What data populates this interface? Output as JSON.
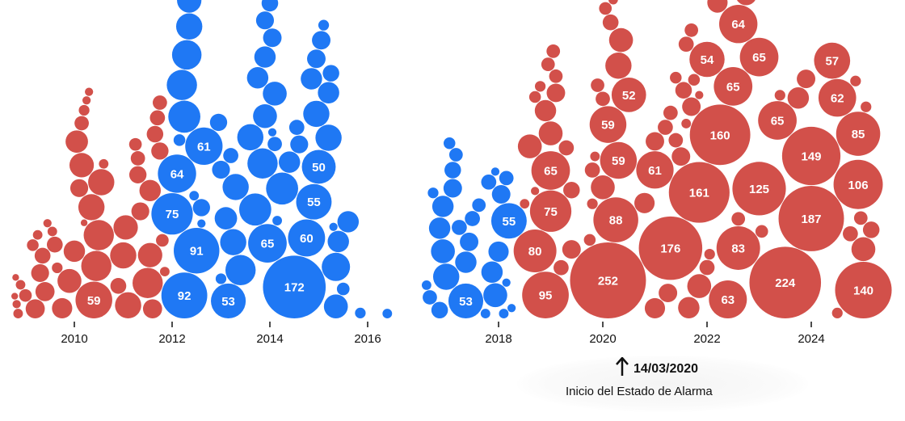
{
  "chart_data": {
    "type": "scatter",
    "subtype": "beeswarm-bubble",
    "title": "",
    "xlabel": "",
    "ylabel": "",
    "x_ticks": [
      "2010",
      "2012",
      "2014",
      "2016",
      "2018",
      "2020",
      "2022",
      "2024"
    ],
    "label_threshold": 50,
    "series": [
      {
        "name": "red-early",
        "color": "#d2504a",
        "points": [
          [
            2008.85,
            4
          ],
          [
            2008.8,
            2
          ],
          [
            2008.78,
            2
          ],
          [
            2008.82,
            3
          ],
          [
            2008.9,
            4
          ],
          [
            2009.0,
            7
          ],
          [
            2009.2,
            16
          ],
          [
            2009.15,
            6
          ],
          [
            2009.3,
            14
          ],
          [
            2009.4,
            16
          ],
          [
            2009.35,
            11
          ],
          [
            2009.25,
            4
          ],
          [
            2009.6,
            11
          ],
          [
            2009.55,
            4
          ],
          [
            2009.45,
            3
          ],
          [
            2009.65,
            5
          ],
          [
            2009.75,
            18
          ],
          [
            2009.9,
            25
          ],
          [
            2010.05,
            22
          ],
          [
            2010.0,
            20
          ],
          [
            2010.15,
            26
          ],
          [
            2010.1,
            14
          ],
          [
            2010.15,
            9
          ],
          [
            2010.2,
            5
          ],
          [
            2010.25,
            3
          ],
          [
            2010.3,
            3
          ],
          [
            2010.2,
            2
          ],
          [
            2010.4,
            59
          ],
          [
            2010.45,
            40
          ],
          [
            2010.5,
            40
          ],
          [
            2010.35,
            30
          ],
          [
            2010.55,
            30
          ],
          [
            2010.6,
            4
          ],
          [
            2010.9,
            11
          ],
          [
            2011.05,
            26
          ],
          [
            2011.1,
            30
          ],
          [
            2011.0,
            30
          ],
          [
            2011.3,
            13
          ],
          [
            2011.35,
            14
          ],
          [
            2011.3,
            9
          ],
          [
            2011.25,
            7
          ],
          [
            2011.5,
            40
          ],
          [
            2011.55,
            26
          ],
          [
            2011.55,
            20
          ],
          [
            2011.6,
            16
          ],
          [
            2011.75,
            13
          ],
          [
            2011.75,
            9
          ],
          [
            2011.8,
            7
          ],
          [
            2011.7,
            10
          ],
          [
            2011.65,
            12
          ],
          [
            2011.85,
            4
          ]
        ]
      },
      {
        "name": "blue-2012-2016",
        "color": "#1f78f4",
        "points": [
          [
            2012.25,
            92
          ],
          [
            2012.5,
            91
          ],
          [
            2012.0,
            75
          ],
          [
            2012.1,
            64
          ],
          [
            2012.65,
            61
          ],
          [
            2013.15,
            53
          ],
          [
            2013.95,
            65
          ],
          [
            2014.5,
            172
          ],
          [
            2012.6,
            3
          ],
          [
            2013.0,
            5
          ],
          [
            2013.25,
            30
          ],
          [
            2012.95,
            13
          ],
          [
            2012.6,
            13
          ],
          [
            2012.45,
            12
          ],
          [
            2012.35,
            26
          ],
          [
            2012.2,
            40
          ],
          [
            2012.25,
            45
          ],
          [
            2012.3,
            38
          ],
          [
            2012.35,
            30
          ],
          [
            2012.4,
            25
          ],
          [
            2012.45,
            4
          ],
          [
            2012.15,
            6
          ],
          [
            2013.0,
            14
          ],
          [
            2013.1,
            22
          ],
          [
            2013.3,
            30
          ],
          [
            2013.2,
            10
          ],
          [
            2013.4,
            40
          ],
          [
            2013.7,
            45
          ],
          [
            2013.85,
            40
          ],
          [
            2013.6,
            30
          ],
          [
            2013.75,
            20
          ],
          [
            2013.9,
            25
          ],
          [
            2014.0,
            12
          ],
          [
            2014.1,
            9
          ],
          [
            2014.05,
            15
          ],
          [
            2014.05,
            3
          ],
          [
            2014.15,
            4
          ],
          [
            2013.9,
            14
          ],
          [
            2013.9,
            20
          ],
          [
            2014.1,
            25
          ],
          [
            2014.25,
            45
          ],
          [
            2014.4,
            20
          ],
          [
            2014.6,
            14
          ],
          [
            2014.55,
            10
          ],
          [
            2014.75,
            60
          ],
          [
            2014.9,
            55
          ],
          [
            2015.0,
            50
          ],
          [
            2015.2,
            20
          ],
          [
            2015.35,
            35
          ],
          [
            2015.35,
            25
          ],
          [
            2015.2,
            30
          ],
          [
            2014.95,
            30
          ],
          [
            2014.85,
            20
          ],
          [
            2014.95,
            15
          ],
          [
            2015.05,
            15
          ],
          [
            2015.1,
            5
          ],
          [
            2015.3,
            3
          ],
          [
            2015.4,
            20
          ],
          [
            2015.5,
            7
          ],
          [
            2015.6,
            20
          ],
          [
            2015.85,
            5
          ],
          [
            2016.3,
            4
          ],
          [
            2014.0,
            8
          ],
          [
            2015.25,
            12
          ]
        ]
      },
      {
        "name": "blue-2017-2018",
        "color": "#1f78f4",
        "points": [
          [
            2017.5,
            53
          ],
          [
            2018.2,
            55
          ],
          [
            2016.9,
            4
          ],
          [
            2017.0,
            5
          ],
          [
            2016.95,
            9
          ],
          [
            2017.1,
            12
          ],
          [
            2017.1,
            20
          ],
          [
            2017.15,
            25
          ],
          [
            2017.2,
            30
          ],
          [
            2017.15,
            20
          ],
          [
            2017.3,
            15
          ],
          [
            2017.3,
            12
          ],
          [
            2017.4,
            10
          ],
          [
            2017.35,
            8
          ],
          [
            2017.25,
            6
          ],
          [
            2017.5,
            20
          ],
          [
            2017.55,
            15
          ],
          [
            2017.6,
            10
          ],
          [
            2017.7,
            8
          ],
          [
            2017.9,
            20
          ],
          [
            2017.95,
            25
          ],
          [
            2018.0,
            18
          ],
          [
            2018.05,
            15
          ],
          [
            2017.85,
            10
          ],
          [
            2018.1,
            4
          ],
          [
            2018.15,
            3
          ],
          [
            2018.25,
            3
          ],
          [
            2017.95,
            3
          ],
          [
            2017.8,
            4
          ],
          [
            2018.15,
            9
          ]
        ]
      },
      {
        "name": "red-2019-2025",
        "color": "#d2504a",
        "points": [
          [
            2018.9,
            95
          ],
          [
            2018.7,
            80
          ],
          [
            2019.0,
            75
          ],
          [
            2019.0,
            65
          ],
          [
            2020.1,
            252
          ],
          [
            2020.25,
            88
          ],
          [
            2020.3,
            59
          ],
          [
            2020.1,
            59
          ],
          [
            2020.5,
            52
          ],
          [
            2021.0,
            61
          ],
          [
            2021.3,
            176
          ],
          [
            2021.85,
            161
          ],
          [
            2022.25,
            160
          ],
          [
            2022.6,
            83
          ],
          [
            2022.4,
            63
          ],
          [
            2022.0,
            54
          ],
          [
            2022.5,
            65
          ],
          [
            2022.6,
            64
          ],
          [
            2023.0,
            65
          ],
          [
            2023.0,
            125
          ],
          [
            2023.35,
            65
          ],
          [
            2023.5,
            224
          ],
          [
            2024.0,
            187
          ],
          [
            2024.0,
            149
          ],
          [
            2024.4,
            57
          ],
          [
            2024.5,
            62
          ],
          [
            2024.9,
            106
          ],
          [
            2024.9,
            85
          ],
          [
            2025.0,
            140
          ],
          [
            2019.4,
            15
          ],
          [
            2018.7,
            3
          ],
          [
            2018.5,
            4
          ],
          [
            2019.1,
            8
          ],
          [
            2018.95,
            8
          ],
          [
            2018.6,
            25
          ],
          [
            2019.0,
            25
          ],
          [
            2019.2,
            10
          ],
          [
            2018.8,
            5
          ],
          [
            2018.9,
            20
          ],
          [
            2019.4,
            12
          ],
          [
            2018.7,
            6
          ],
          [
            2019.1,
            15
          ],
          [
            2019.05,
            8
          ],
          [
            2019.3,
            10
          ],
          [
            2020.0,
            25
          ],
          [
            2020.35,
            25
          ],
          [
            2019.8,
            10
          ],
          [
            2019.9,
            8
          ],
          [
            2020.05,
            7
          ],
          [
            2019.75,
            6
          ],
          [
            2019.8,
            5
          ],
          [
            2019.85,
            4
          ],
          [
            2020.2,
            4
          ],
          [
            2020.0,
            9
          ],
          [
            2020.15,
            11
          ],
          [
            2020.3,
            30
          ],
          [
            2021.0,
            15
          ],
          [
            2021.2,
            10
          ],
          [
            2021.4,
            9
          ],
          [
            2021.5,
            15
          ],
          [
            2021.6,
            10
          ],
          [
            2021.55,
            12
          ],
          [
            2021.3,
            9
          ],
          [
            2021.0,
            18
          ],
          [
            2020.8,
            18
          ],
          [
            2021.25,
            15
          ],
          [
            2021.4,
            6
          ],
          [
            2021.7,
            15
          ],
          [
            2021.85,
            3
          ],
          [
            2022.05,
            5
          ],
          [
            2022.0,
            10
          ],
          [
            2021.75,
            6
          ],
          [
            2021.7,
            8
          ],
          [
            2021.6,
            4
          ],
          [
            2022.4,
            7
          ],
          [
            2022.6,
            8
          ],
          [
            2023.05,
            7
          ],
          [
            2023.4,
            5
          ],
          [
            2022.75,
            20
          ],
          [
            2022.45,
            15
          ],
          [
            2022.2,
            18
          ],
          [
            2021.85,
            25
          ],
          [
            2021.65,
            20
          ],
          [
            2023.75,
            20
          ],
          [
            2024.5,
            5
          ],
          [
            2024.75,
            10
          ],
          [
            2024.85,
            5
          ],
          [
            2025.05,
            5
          ],
          [
            2025.0,
            25
          ],
          [
            2025.15,
            12
          ],
          [
            2024.95,
            8
          ],
          [
            2023.9,
            15
          ]
        ]
      }
    ],
    "annotation": {
      "date": "14/03/2020",
      "text": "Inicio del Estado de Alarma",
      "x": 2020.2
    }
  }
}
